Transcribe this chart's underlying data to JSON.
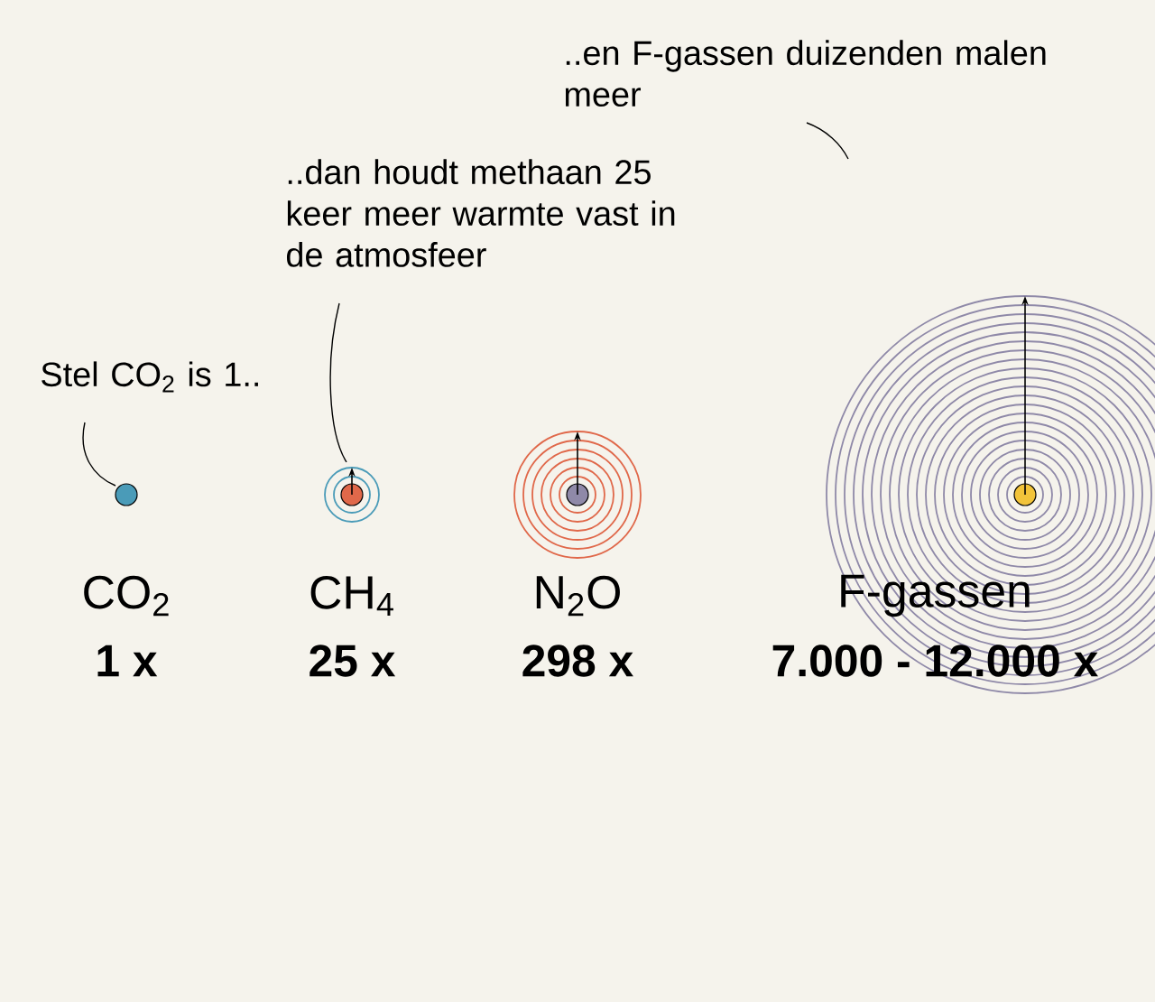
{
  "chart_data": {
    "type": "other",
    "categories": [
      "CO$_{2}$",
      "CH$_{4}$",
      "N$_{2}$O",
      "F-gassen"
    ],
    "values": [
      1,
      25,
      298,
      7000
    ],
    "value_labels": [
      "1 x",
      "25 x",
      "298 x",
      "7.000 - 12.000 x"
    ],
    "colors": [
      "#4a9bb8",
      "#e0684a",
      "#8f89a8",
      "#f2c43a"
    ],
    "annotations": [
      "Stel CO$_{2}$ is 1..",
      "..dan houdt methaan 25 keer meer warmte vast in de atmosfeer",
      "..en F-gassen duizenden malen meer"
    ]
  }
}
